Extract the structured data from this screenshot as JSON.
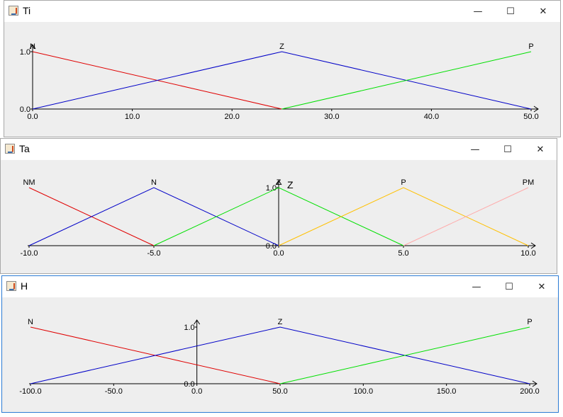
{
  "windows": [
    {
      "title": "Ti",
      "controls": {
        "minimize": "—",
        "maximize": "☐",
        "close": "✕"
      },
      "chart_data": {
        "type": "line",
        "x_ticks": [
          "0.0",
          "10.0",
          "20.0",
          "30.0",
          "40.0",
          "50.0"
        ],
        "y_ticks": [
          "0.0",
          "1.0"
        ],
        "series": [
          {
            "name": "N",
            "color": "#e00000",
            "points": [
              [
                0,
                1
              ],
              [
                25,
                0
              ]
            ]
          },
          {
            "name": "Z",
            "color": "#0000c8",
            "points": [
              [
                0,
                0
              ],
              [
                25,
                1
              ],
              [
                50,
                0
              ]
            ]
          },
          {
            "name": "P",
            "color": "#00e000",
            "points": [
              [
                25,
                0
              ],
              [
                50,
                1
              ]
            ]
          }
        ]
      }
    },
    {
      "title": "Ta",
      "controls": {
        "minimize": "—",
        "maximize": "☐",
        "close": "✕"
      },
      "extra_label": "Z",
      "chart_data": {
        "type": "line",
        "x_ticks": [
          "-10.0",
          "-5.0",
          "0.0",
          "5.0",
          "10.0"
        ],
        "y_ticks": [
          "0.0",
          "1.0"
        ],
        "series": [
          {
            "name": "NM",
            "color": "#e00000",
            "points": [
              [
                -10,
                1
              ],
              [
                -5,
                0
              ]
            ]
          },
          {
            "name": "N",
            "color": "#0000c8",
            "points": [
              [
                -10,
                0
              ],
              [
                -5,
                1
              ],
              [
                0,
                0
              ]
            ]
          },
          {
            "name": "Z",
            "color": "#00e000",
            "points": [
              [
                -5,
                0
              ],
              [
                0,
                1
              ],
              [
                5,
                0
              ]
            ]
          },
          {
            "name": "P",
            "color": "#ffc000",
            "points": [
              [
                0,
                0
              ],
              [
                5,
                1
              ],
              [
                10,
                0
              ]
            ]
          },
          {
            "name": "PM",
            "color": "#ffaaaa",
            "points": [
              [
                5,
                0
              ],
              [
                10,
                1
              ]
            ]
          }
        ]
      }
    },
    {
      "title": "H",
      "controls": {
        "minimize": "—",
        "maximize": "☐",
        "close": "✕"
      },
      "chart_data": {
        "type": "line",
        "x_ticks": [
          "-100.0",
          "-50.0",
          "0.0",
          "50.0",
          "100.0",
          "150.0",
          "200.0"
        ],
        "y_ticks": [
          "0.0",
          "1.0"
        ],
        "series": [
          {
            "name": "N",
            "color": "#e00000",
            "points": [
              [
                -100,
                1
              ],
              [
                50,
                0
              ]
            ]
          },
          {
            "name": "Z",
            "color": "#0000c8",
            "points": [
              [
                -100,
                0
              ],
              [
                50,
                1
              ],
              [
                200,
                0
              ]
            ]
          },
          {
            "name": "P",
            "color": "#00e000",
            "points": [
              [
                50,
                0
              ],
              [
                200,
                1
              ]
            ]
          }
        ]
      }
    }
  ]
}
